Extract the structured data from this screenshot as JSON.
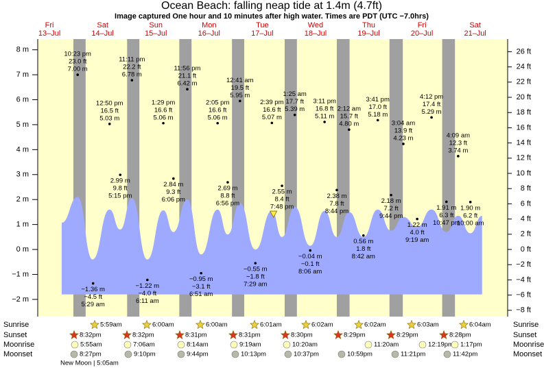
{
  "chart_data": {
    "type": "area",
    "title": "Ocean Beach: falling  neap tide at 1.4m (4.7ft)",
    "subtitle": "Image captured One hour and 10 minutes after high water. Times are PDT (UTC −7.0hrs)",
    "days": [
      {
        "name": "Fri",
        "date": "13–Jul"
      },
      {
        "name": "Sat",
        "date": "14–Jul"
      },
      {
        "name": "Sun",
        "date": "15–Jul"
      },
      {
        "name": "Mon",
        "date": "16–Jul"
      },
      {
        "name": "Tue",
        "date": "17–Jul"
      },
      {
        "name": "Wed",
        "date": "18–Jul"
      },
      {
        "name": "Thu",
        "date": "19–Jul"
      },
      {
        "name": "Fri",
        "date": "20–Jul"
      },
      {
        "name": "Sat",
        "date": "21–Jul"
      }
    ],
    "xlim": [
      0.28,
      9.11
    ],
    "ylim": [
      -2.69,
      8.43
    ],
    "yticks": [
      {
        "value": 8,
        "label": "8 m"
      },
      {
        "value": 7,
        "label": "7 m"
      },
      {
        "value": 6,
        "label": "6 m"
      },
      {
        "value": 5,
        "label": "5 m"
      },
      {
        "value": 4,
        "label": "4 m"
      },
      {
        "value": 3,
        "label": "3 m"
      },
      {
        "value": 2,
        "label": "2 m"
      },
      {
        "value": 1,
        "label": "1 m"
      },
      {
        "value": 0,
        "label": "0 m"
      },
      {
        "value": -1,
        "label": "−1 m"
      },
      {
        "value": -2,
        "label": "−2 m"
      }
    ],
    "y2lim": [
      -8.83,
      27.66
    ],
    "y2ticks": [
      {
        "value": 26,
        "label": "26 ft"
      },
      {
        "value": 24,
        "label": "24 ft"
      },
      {
        "value": 22,
        "label": "22 ft"
      },
      {
        "value": 20,
        "label": "20 ft"
      },
      {
        "value": 18,
        "label": "18 ft"
      },
      {
        "value": 16,
        "label": "16 ft"
      },
      {
        "value": 14,
        "label": "14 ft"
      },
      {
        "value": 12,
        "label": "12 ft"
      },
      {
        "value": 10,
        "label": "10 ft"
      },
      {
        "value": 8,
        "label": "8 ft"
      },
      {
        "value": 6,
        "label": "6 ft"
      },
      {
        "value": 4,
        "label": "4 ft"
      },
      {
        "value": 2,
        "label": "2 ft"
      },
      {
        "value": 0,
        "label": "0 ft"
      },
      {
        "value": -2,
        "label": "−2 ft"
      },
      {
        "value": -4,
        "label": "−4 ft"
      },
      {
        "value": -6,
        "label": "−6 ft"
      },
      {
        "value": -8,
        "label": "−8 ft"
      }
    ],
    "background_color": "#ffffcc",
    "night_color": "#a0a0a0",
    "nights": [
      [
        0.95,
        1.18
      ],
      [
        1.96,
        2.19
      ],
      [
        2.94,
        3.17
      ],
      [
        3.93,
        4.16
      ],
      [
        4.92,
        5.15
      ],
      [
        5.9,
        6.14
      ],
      [
        6.89,
        7.14
      ],
      [
        7.88,
        8.12
      ]
    ],
    "fill_floor": -1.8,
    "series": [
      {
        "color": "#9eaaff",
        "x": [
          0.73,
          1.03,
          1.31,
          1.63,
          1.83,
          2.05,
          2.34,
          2.64,
          2.83,
          3.09,
          3.35,
          3.66,
          3.85,
          4.08,
          4.37,
          4.68,
          4.87,
          5.11,
          5.4,
          5.67,
          5.9,
          6.13,
          6.4,
          6.67,
          6.92,
          7.15,
          7.41,
          7.68,
          7.96,
          8.18,
          8.41,
          8.63
        ],
        "values": [
          1.07,
          2.1,
          -0.4,
          1.6,
          0.8,
          2.05,
          -0.4,
          1.57,
          0.7,
          2.0,
          -0.2,
          1.6,
          0.6,
          1.85,
          0.0,
          1.55,
          0.5,
          1.7,
          0.15,
          1.55,
          0.5,
          1.5,
          0.5,
          1.6,
          0.75,
          1.3,
          0.9,
          1.6,
          0.7,
          1.35,
          0.65,
          1.35
        ]
      }
    ],
    "now": {
      "x": 4.71,
      "value": 1.4,
      "color": "#ffee44"
    },
    "extremes": {
      "x": [
        1.03,
        1.32,
        1.63,
        1.83,
        2.05,
        2.34,
        2.64,
        2.83,
        3.09,
        3.35,
        3.66,
        3.85,
        4.08,
        4.37,
        4.68,
        4.87,
        5.11,
        5.4,
        5.67,
        5.9,
        6.13,
        6.4,
        6.67,
        6.92,
        7.15,
        7.41,
        7.68,
        7.96,
        8.18,
        8.41
      ],
      "values": [
        7.0,
        -1.36,
        5.03,
        2.99,
        6.78,
        -1.22,
        5.06,
        2.84,
        6.42,
        -0.95,
        5.06,
        2.69,
        5.95,
        -0.55,
        5.07,
        2.55,
        5.39,
        -0.04,
        5.11,
        2.38,
        4.8,
        0.56,
        5.18,
        2.18,
        4.23,
        1.22,
        5.29,
        1.91,
        3.74,
        1.9
      ],
      "value_labels": [
        "7.00 m",
        "−1.36 m",
        "5.03 m",
        "2.99 m",
        "6.78 m",
        "−1.22 m",
        "5.06 m",
        "2.84 m",
        "6.42 m",
        "−0.95 m",
        "5.06 m",
        "2.69 m",
        "5.95 m",
        "−0.55 m",
        "5.07 m",
        "2.55 m",
        "5.39 m",
        "−0.04 m",
        "5.11 m",
        "2.38 m",
        "4.80 m",
        "0.56 m",
        "5.18 m",
        "2.18 m",
        "4.23 m",
        "1.22 m",
        "5.29 m",
        "1.91 m",
        "3.74 m",
        "1.90 m"
      ],
      "ft_labels": [
        "23.0 ft",
        "−4.5 ft",
        "16.5 ft",
        "9.8 ft",
        "22.2 ft",
        "−4.0 ft",
        "16.6 ft",
        "9.3 ft",
        "21.1 ft",
        "−3.1 ft",
        "16.6 ft",
        "8.8 ft",
        "19.5 ft",
        "−1.8 ft",
        "16.6 ft",
        "8.4 ft",
        "17.7 ft",
        "−0.1 ft",
        "16.8 ft",
        "7.8 ft",
        "15.7 ft",
        "1.8 ft",
        "17.0 ft",
        "7.2 ft",
        "13.9 ft",
        "4.0 ft",
        "17.4 ft",
        "6.3 ft",
        "12.3 ft",
        "6.2 ft"
      ],
      "times": [
        "10:23 pm",
        "5:29 am",
        "12:50 pm",
        "5:15 pm",
        "11:11 pm",
        "6:11 am",
        "1:29 pm",
        "6:06 pm",
        "11:56 pm",
        "6:51 am",
        "2:05 pm",
        "6:56 pm",
        "12:41 am",
        "7:29 am",
        "2:39 pm",
        "7:48 pm",
        "1:25 am",
        "8:06 am",
        "3:11 pm",
        "8:44 pm",
        "2:12 am",
        "8:42 am",
        "3:41 pm",
        "9:44 pm",
        "3:04 am",
        "9:19 am",
        "4:12 pm",
        "10:47 pm",
        "4:09 am",
        "10:00 am"
      ]
    },
    "row_labels": [
      "Sunrise",
      "Sunset",
      "Moonrise",
      "Moonset"
    ],
    "sunrise": [
      "5:59am",
      "6:00am",
      "6:00am",
      "6:01am",
      "6:02am",
      "6:02am",
      "6:03am",
      "6:04am"
    ],
    "sunset": [
      "8:32pm",
      "8:32pm",
      "8:31pm",
      "8:31pm",
      "8:30pm",
      "8:29pm",
      "8:29pm",
      "8:28pm"
    ],
    "moonrise": [
      "5:55am",
      "7:06am",
      "8:14am",
      "9:19am",
      "10:20am",
      "11:20am",
      "12:19pm",
      "1:17pm"
    ],
    "moonset": [
      "8:27pm",
      "9:10pm",
      "9:44pm",
      "10:13pm",
      "10:37pm",
      "10:59pm",
      "11:21pm",
      "11:42pm"
    ],
    "moon_phase": "New Moon | 5:05am"
  }
}
